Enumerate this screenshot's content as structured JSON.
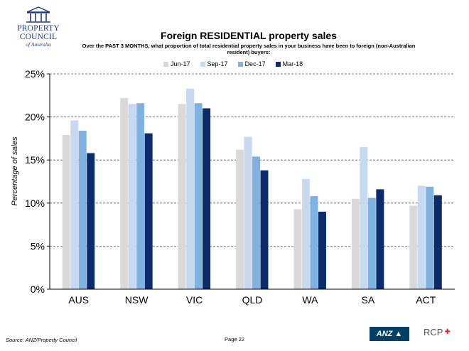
{
  "logo": {
    "line1": "PROPERTY",
    "line2": "COUNCIL",
    "line3": "of Australia"
  },
  "footer": {
    "source": "Source: ANZ/Property Council",
    "page": "Page 22",
    "anz_label": "ANZ",
    "rcp_label": "RCP"
  },
  "colors": {
    "jun17": "#d9d9d9",
    "sep17": "#c6d9f1",
    "dec17": "#7fb2e0",
    "mar18": "#0d2a6b",
    "grid": "#555555"
  },
  "chart_data": {
    "type": "bar",
    "title": "Foreign RESIDENTIAL property sales",
    "subtitle": "Over the PAST 3 MONTHS, what proportion of total residential property sales in your business have been to foreign (non-Australian resident) buyers:",
    "xlabel": "",
    "ylabel": "Percentage of sales",
    "ylim": [
      0,
      25
    ],
    "yticks": [
      0,
      5,
      10,
      15,
      20,
      25
    ],
    "ytick_labels": [
      "0%",
      "5%",
      "10%",
      "15%",
      "20%",
      "25%"
    ],
    "grid": true,
    "legend_position": "top",
    "categories": [
      "AUS",
      "NSW",
      "VIC",
      "QLD",
      "WA",
      "SA",
      "ACT"
    ],
    "series": [
      {
        "name": "Jun-17",
        "values": [
          17.9,
          22.2,
          21.5,
          16.2,
          9.3,
          10.5,
          9.7
        ]
      },
      {
        "name": "Sep-17",
        "values": [
          19.6,
          21.5,
          23.3,
          17.7,
          12.8,
          16.5,
          12.0
        ]
      },
      {
        "name": "Dec-17",
        "values": [
          18.4,
          21.6,
          21.6,
          15.4,
          10.8,
          10.6,
          11.9
        ]
      },
      {
        "name": "Mar-18",
        "values": [
          15.8,
          18.1,
          21.0,
          13.8,
          9.0,
          11.6,
          10.9
        ]
      }
    ]
  }
}
